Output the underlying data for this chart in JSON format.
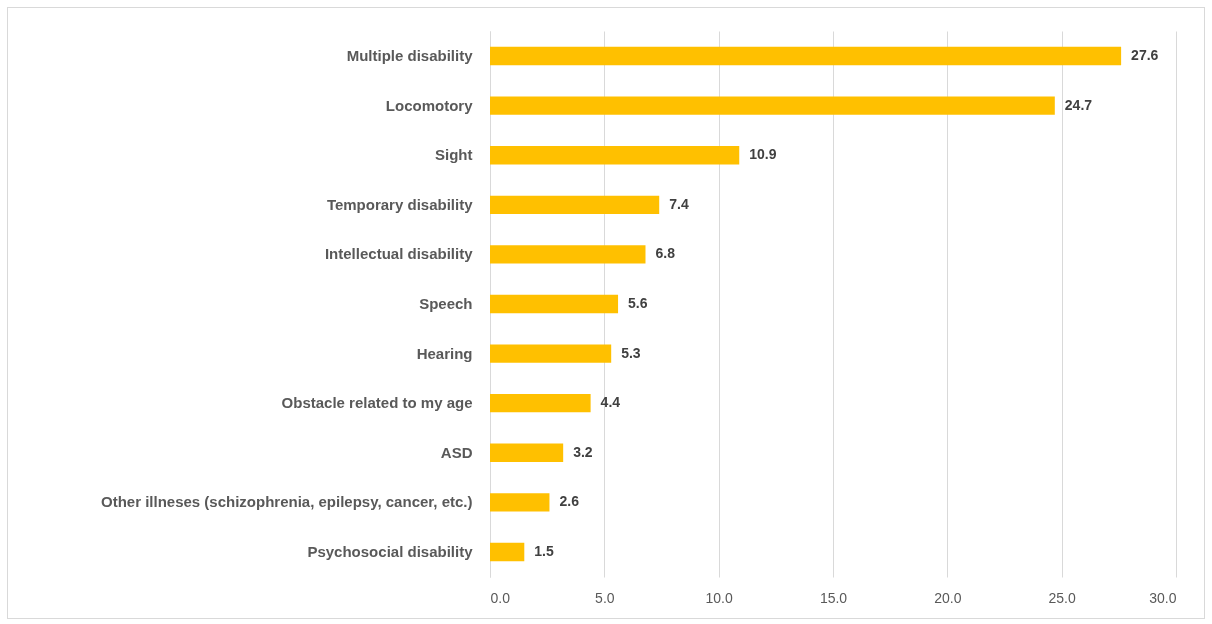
{
  "chart_data": {
    "type": "bar",
    "orientation": "horizontal",
    "categories": [
      "Multiple disability",
      "Locomotory",
      "Sight",
      "Temporary disability",
      "Intellectual disability",
      "Speech",
      "Hearing",
      "Obstacle related to my age",
      "ASD",
      "Other illneses (schizophrenia, epilepsy, cancer, etc.)",
      "Psychosocial disability"
    ],
    "values": [
      27.6,
      24.7,
      10.9,
      7.4,
      6.8,
      5.6,
      5.3,
      4.4,
      3.2,
      2.6,
      1.5
    ],
    "color": "#ffc000",
    "xlim": [
      0,
      30
    ],
    "xticks": [
      {
        "value": 0,
        "label": "0.0"
      },
      {
        "value": 5,
        "label": "5.0"
      },
      {
        "value": 10,
        "label": "10.0"
      },
      {
        "value": 15,
        "label": "15.0"
      },
      {
        "value": 20,
        "label": "20.0"
      },
      {
        "value": 25,
        "label": "25.0"
      },
      {
        "value": 30,
        "label": "30.0"
      }
    ],
    "grid": "x",
    "data_labels": true
  }
}
